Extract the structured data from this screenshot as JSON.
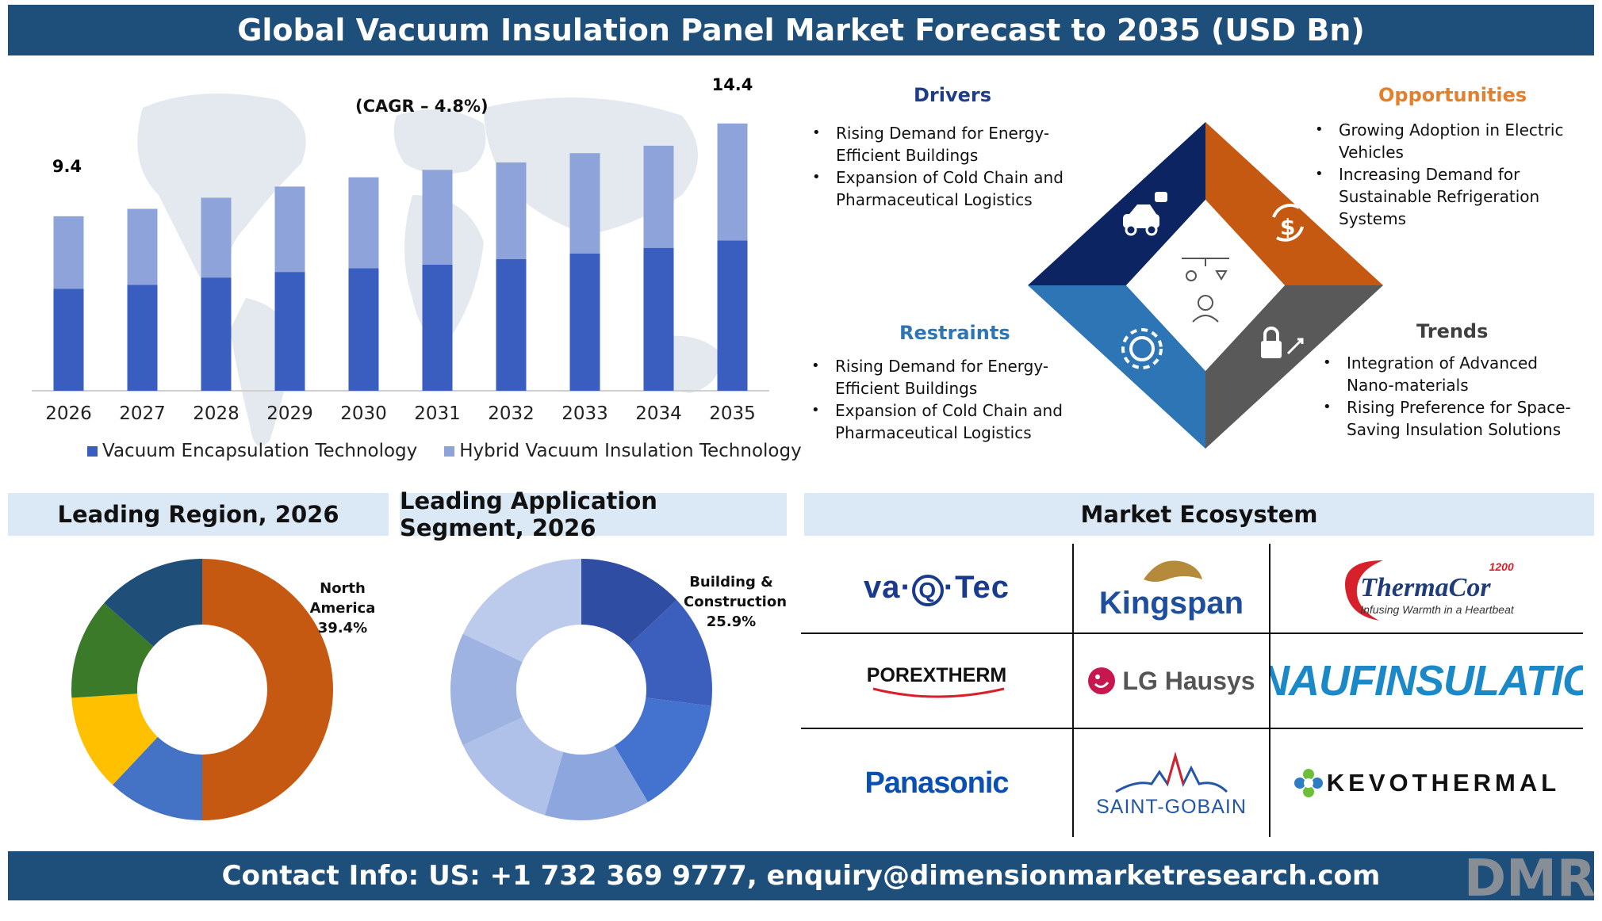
{
  "header": {
    "title": "Global Vacuum Insulation Panel Market Forecast to 2035 (USD Bn)"
  },
  "footer": {
    "contact": "Contact Info: US: +1 732 369 9777, enquiry@dimensionmarketresearch.com",
    "logo": "DMR"
  },
  "colors": {
    "dark_blue": "#3a5ec0",
    "light_blue": "#8ea3d9",
    "header_blue": "#1e4e7a",
    "orange": "#c65911",
    "navy": "#0c2461",
    "mid_blue": "#2e75b6",
    "gray": "#595959"
  },
  "chart_data": {
    "type": "bar",
    "stacked": true,
    "categories": [
      "2026",
      "2027",
      "2028",
      "2029",
      "2030",
      "2031",
      "2032",
      "2033",
      "2034",
      "2035"
    ],
    "series": [
      {
        "name": "Vacuum Encapsulation Technology",
        "values": [
          5.5,
          5.7,
          6.1,
          6.4,
          6.6,
          6.8,
          7.1,
          7.4,
          7.7,
          8.1
        ]
      },
      {
        "name": "Hybrid Vacuum Insulation Technology",
        "values": [
          3.9,
          4.1,
          4.3,
          4.6,
          4.9,
          5.1,
          5.2,
          5.4,
          5.5,
          6.3
        ]
      }
    ],
    "total_labels": {
      "first": "9.4",
      "last": "14.4"
    },
    "annotation": "(CAGR – 4.8%)",
    "ylim": [
      0,
      15.5
    ],
    "legend_position": "bottom"
  },
  "quadrants": {
    "drivers": {
      "title": "Drivers",
      "items": [
        "Rising Demand for Energy-Efficient Buildings",
        "Expansion of Cold Chain and Pharmaceutical Logistics"
      ]
    },
    "opportunities": {
      "title": "Opportunities",
      "items": [
        "Growing Adoption in Electric Vehicles",
        "Increasing Demand for Sustainable Refrigeration Systems"
      ]
    },
    "restraints": {
      "title": "Restraints",
      "items": [
        "Rising Demand for Energy-Efficient Buildings",
        "Expansion of Cold Chain and Pharmaceutical Logistics"
      ]
    },
    "trends": {
      "title": "Trends",
      "items": [
        "Integration of Advanced Nano-materials",
        "Rising Preference for Space-Saving Insulation Solutions"
      ]
    }
  },
  "region": {
    "title": "Leading Region, 2026",
    "label_lines": [
      "North",
      "America",
      "39.4%"
    ],
    "slices": [
      {
        "value": 50.0,
        "color": "#c65911"
      },
      {
        "value": 12.0,
        "color": "#4472c4"
      },
      {
        "value": 12.0,
        "color": "#ffc000"
      },
      {
        "value": 12.5,
        "color": "#3a7a28"
      },
      {
        "value": 13.5,
        "color": "#1f4e79"
      }
    ]
  },
  "application": {
    "title": "Leading Application Segment, 2026",
    "label_lines": [
      "Building &",
      "Construction",
      "25.9%"
    ],
    "slices": [
      {
        "value": 13.0,
        "color": "#2f4ea3"
      },
      {
        "value": 14.0,
        "color": "#3c5fbe"
      },
      {
        "value": 14.5,
        "color": "#4373cf"
      },
      {
        "value": 13.0,
        "color": "#8ea6de"
      },
      {
        "value": 13.5,
        "color": "#afc1e9"
      },
      {
        "value": 14.0,
        "color": "#9fb3e3"
      },
      {
        "value": 18.0,
        "color": "#bccbec"
      }
    ]
  },
  "ecosystem": {
    "title": "Market Ecosystem",
    "logos": {
      "vaqtec_pre": "va",
      "vaqtec_q": "Q",
      "vaqtec_post": "Tec",
      "kingspan": "Kingspan",
      "thermacor": "ThermaCor",
      "thermacor_tag": "Infusing Warmth in a Heartbeat",
      "thermacor_num": "1200",
      "porextherm": "POREXTHERM",
      "lghausys": "LG Hausys",
      "knauf": "KNAUFINSULATION",
      "panasonic": "Panasonic",
      "saintgobain": "SAINT-GOBAIN",
      "kevothermal": "KEVOTHERMAL"
    }
  }
}
